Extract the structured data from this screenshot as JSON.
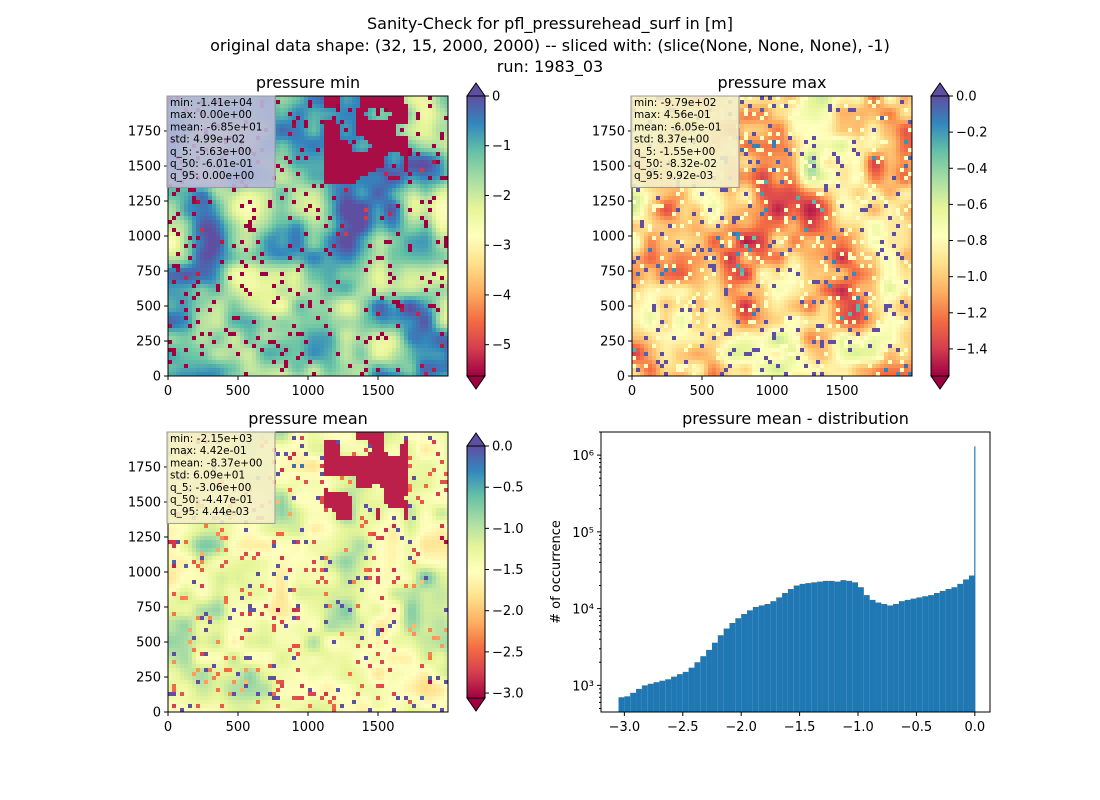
{
  "figure": {
    "suptitle": [
      "Sanity-Check for pfl_pressurehead_surf in [m]",
      "original data shape: (32, 15, 2000, 2000) -- sliced with: (slice(None, None, None), -1)",
      "run: 1983_03"
    ]
  },
  "panels": [
    {
      "title": "pressure min",
      "colormap": "Spectral",
      "clim": [
        -5.63,
        0
      ],
      "colorbar_ticks": [
        "0",
        "−1",
        "−2",
        "−3",
        "−4",
        "−5"
      ],
      "colorbar_tick_values": [
        0,
        -1,
        -2,
        -3,
        -4,
        -5
      ],
      "extend": "both",
      "dominant": "high",
      "stats": [
        "min: -1.41e+04",
        "max: 0.00e+00",
        "mean: -6.85e+01",
        "std: 4.99e+02",
        "q_5: -5.63e+00",
        "q_50: -6.01e-01",
        "q_95: 0.00e+00"
      ],
      "stats_bg": "#b8b8d8"
    },
    {
      "title": "pressure max",
      "colormap": "Spectral",
      "clim": [
        -1.55,
        0
      ],
      "colorbar_ticks": [
        "0.0",
        "−0.2",
        "−0.4",
        "−0.6",
        "−0.8",
        "−1.0",
        "−1.2",
        "−1.4"
      ],
      "colorbar_tick_values": [
        0,
        -0.2,
        -0.4,
        -0.6,
        -0.8,
        -1.0,
        -1.2,
        -1.4
      ],
      "extend": "both",
      "dominant": "mixed",
      "stats": [
        "min: -9.79e+02",
        "max: 4.56e-01",
        "mean: -6.05e-01",
        "std: 8.37e+00",
        "q_5: -1.55e+00",
        "q_50: -8.32e-02",
        "q_95: 9.92e-03"
      ],
      "stats_bg": "#f4efc8"
    },
    {
      "title": "pressure mean",
      "colormap": "Spectral",
      "clim": [
        -3.06,
        0
      ],
      "colorbar_ticks": [
        "0.0",
        "−0.5",
        "−1.0",
        "−1.5",
        "−2.0",
        "−2.5",
        "−3.0"
      ],
      "colorbar_tick_values": [
        0,
        -0.5,
        -1.0,
        -1.5,
        -2.0,
        -2.5,
        -3.0
      ],
      "extend": "both",
      "dominant": "yellow",
      "stats": [
        "min: -2.15e+03",
        "max: 4.42e-01",
        "mean: -8.37e+00",
        "std: 6.09e+01",
        "q_5: -3.06e+00",
        "q_50: -4.47e-01",
        "q_95: 4.44e-03"
      ],
      "stats_bg": "#f4efc8"
    }
  ],
  "map_axes": {
    "x_ticks": [
      "0",
      "500",
      "1000",
      "1500"
    ],
    "x_tick_values": [
      0,
      500,
      1000,
      1500
    ],
    "y_ticks": [
      "0",
      "250",
      "500",
      "750",
      "1000",
      "1250",
      "1500",
      "1750"
    ],
    "y_tick_values": [
      0,
      250,
      500,
      750,
      1000,
      1250,
      1500,
      1750
    ],
    "range": [
      0,
      2000
    ]
  },
  "chart_data": {
    "type": "bar",
    "title": "pressure mean - distribution",
    "xlabel": "",
    "ylabel": "# of occurrence",
    "y_scale": "log",
    "xlim": [
      -3.2,
      0.13
    ],
    "ylim": [
      450,
      2000000
    ],
    "x_ticks": [
      "−3.0",
      "−2.5",
      "−2.0",
      "−1.5",
      "−1.0",
      "−0.5",
      "0.0"
    ],
    "x_tick_values": [
      -3.0,
      -2.5,
      -2.0,
      -1.5,
      -1.0,
      -0.5,
      0.0
    ],
    "y_ticks": [
      "10³",
      "10⁴",
      "10⁵",
      "10⁶"
    ],
    "y_tick_values": [
      1000,
      10000,
      100000,
      1000000
    ],
    "bar_color": "#1f77b4",
    "bin_centers": [
      -3.025,
      -2.975,
      -2.925,
      -2.875,
      -2.825,
      -2.775,
      -2.725,
      -2.675,
      -2.625,
      -2.575,
      -2.525,
      -2.475,
      -2.425,
      -2.375,
      -2.325,
      -2.275,
      -2.225,
      -2.175,
      -2.125,
      -2.075,
      -2.025,
      -1.975,
      -1.925,
      -1.875,
      -1.825,
      -1.775,
      -1.725,
      -1.675,
      -1.625,
      -1.575,
      -1.525,
      -1.475,
      -1.425,
      -1.375,
      -1.325,
      -1.275,
      -1.225,
      -1.175,
      -1.125,
      -1.075,
      -1.025,
      -0.975,
      -0.925,
      -0.875,
      -0.825,
      -0.775,
      -0.725,
      -0.675,
      -0.625,
      -0.575,
      -0.525,
      -0.475,
      -0.425,
      -0.375,
      -0.325,
      -0.275,
      -0.225,
      -0.175,
      -0.125,
      -0.075,
      -0.025,
      0.0
    ],
    "bin_width": 0.05,
    "values": [
      700,
      720,
      800,
      900,
      1000,
      1050,
      1100,
      1150,
      1200,
      1300,
      1400,
      1500,
      1700,
      2000,
      2400,
      2900,
      3600,
      4500,
      5500,
      6500,
      7500,
      8500,
      9500,
      10500,
      11000,
      11500,
      12500,
      14000,
      16000,
      18000,
      20000,
      21000,
      21500,
      22000,
      22500,
      23000,
      23000,
      22500,
      23500,
      23000,
      22000,
      19000,
      15000,
      13000,
      12000,
      11500,
      11000,
      11500,
      12500,
      13000,
      13500,
      14000,
      14500,
      15000,
      16000,
      17000,
      18000,
      19000,
      21000,
      24000,
      27000,
      1300000
    ]
  }
}
